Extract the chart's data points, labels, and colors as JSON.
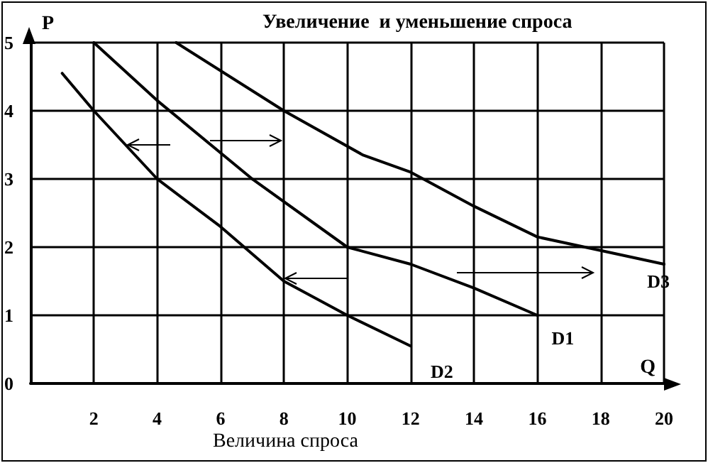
{
  "chart_data": {
    "type": "line",
    "title": "Увеличение  и уменьшение спроса",
    "xlabel": "Q",
    "ylabel": "P",
    "annotations": [
      "Величина спроса"
    ],
    "xlim": [
      0,
      20
    ],
    "xticks": [
      2,
      4,
      6,
      8,
      10,
      12,
      14,
      16,
      18,
      20
    ],
    "ylim": [
      0,
      5
    ],
    "yticks": [
      0,
      1,
      2,
      3,
      4,
      5
    ],
    "grid": true,
    "legend": false,
    "marker": "none",
    "line_style": "solid",
    "series": [
      {
        "name": "D1",
        "color": "#000000",
        "x": [
          2,
          4,
          7,
          10,
          12,
          14,
          16
        ],
        "values": [
          5,
          4.15,
          3,
          2,
          1.75,
          1.4,
          1
        ]
      },
      {
        "name": "D2",
        "color": "#000000",
        "x": [
          1,
          2,
          4,
          6,
          8,
          10,
          12
        ],
        "values": [
          4.55,
          4,
          3,
          2.3,
          1.5,
          1,
          0.55
        ]
      },
      {
        "name": "D3",
        "color": "#000000",
        "x": [
          4.6,
          8,
          10.5,
          12,
          14,
          16,
          18,
          20
        ],
        "values": [
          5,
          4,
          3.35,
          3.1,
          2.6,
          2.15,
          1.95,
          1.75
        ]
      }
    ]
  }
}
